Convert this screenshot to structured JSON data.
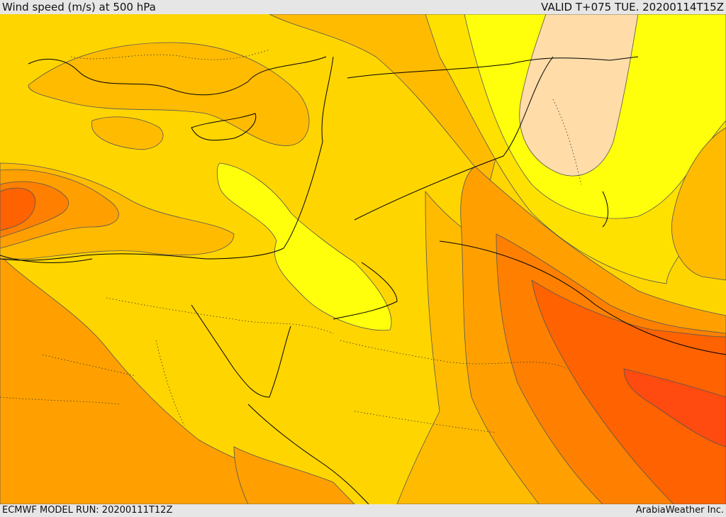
{
  "header": {
    "title": "Wind speed (m/s) at 500 hPa",
    "valid": "VALID T+075 TUE. 20200114T15Z"
  },
  "footer": {
    "model_run": "ECMWF MODEL RUN: 20200111T12Z",
    "credit": "ArabiaWeather Inc."
  },
  "colors": {
    "background_band": "#FFD500",
    "band_light": "#FFE100",
    "band_lightest": "#FFFF0C",
    "band_pale": "#FFDCA8",
    "band_mid": "#FFBB00",
    "band_orange": "#FFA000",
    "band_dark_orange": "#FF8000",
    "band_red_orange": "#FF6200",
    "band_red": "#FF4A10",
    "contour_line": "#555555",
    "coastline": "#000000"
  }
}
